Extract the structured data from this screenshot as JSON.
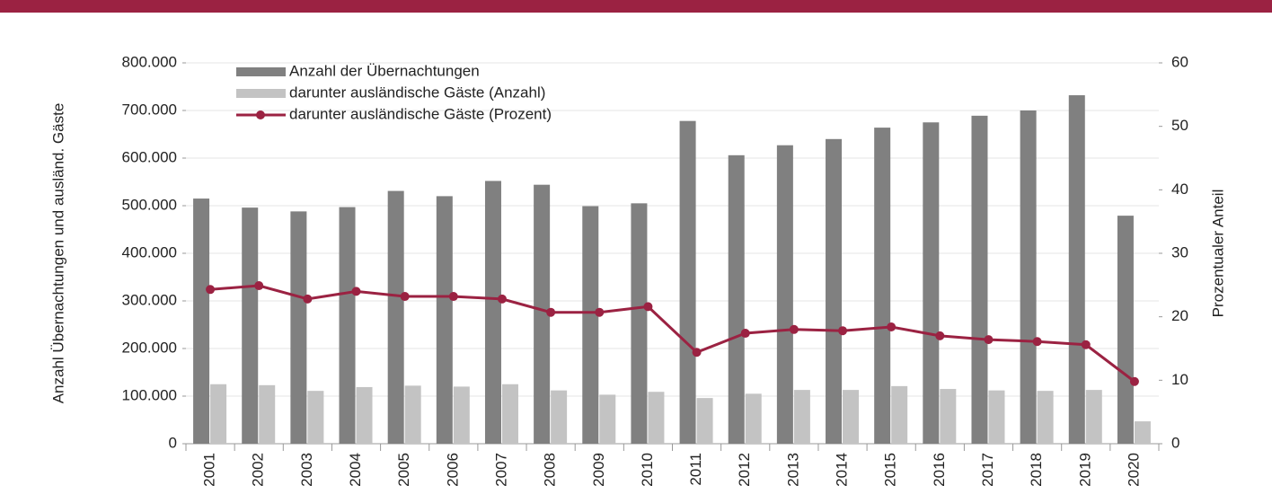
{
  "chart_data": {
    "type": "bar-line",
    "ylabel": "Anzahl Übernachtungen und ausländ. Gäste",
    "y2label": "Prozentualer Anteil",
    "categories": [
      "2001",
      "2002",
      "2003",
      "2004",
      "2005",
      "2006",
      "2007",
      "2008",
      "2009",
      "2010",
      "2011",
      "2012",
      "2013",
      "2014",
      "2015",
      "2016",
      "2017",
      "2018",
      "2019",
      "2020"
    ],
    "series": [
      {
        "name": "Anzahl der Übernachtungen",
        "type": "bar",
        "color": "#808080",
        "values": [
          515000,
          496000,
          488000,
          497000,
          531000,
          520000,
          552000,
          544000,
          499000,
          505000,
          678000,
          606000,
          627000,
          640000,
          664000,
          675000,
          689000,
          700000,
          732000,
          479000
        ]
      },
      {
        "name": "darunter ausländische Gäste (Anzahl)",
        "type": "bar",
        "color": "#c3c3c3",
        "values": [
          125000,
          123000,
          111000,
          119000,
          122000,
          120000,
          125000,
          112000,
          103000,
          109000,
          96000,
          105000,
          113000,
          113000,
          121000,
          115000,
          112000,
          111000,
          113000,
          47000
        ]
      },
      {
        "name": "darunter ausländische Gäste (Prozent)",
        "type": "line",
        "axis": "y2",
        "color": "#9b2242",
        "values": [
          24.3,
          24.9,
          22.8,
          24.0,
          23.2,
          23.2,
          22.8,
          20.7,
          20.7,
          21.6,
          14.4,
          17.4,
          18.0,
          17.8,
          18.4,
          17.0,
          16.4,
          16.1,
          15.6,
          9.8
        ]
      }
    ],
    "ylim": [
      0,
      800000
    ],
    "yticks": [
      0,
      {
        "value": 100000,
        "label": "100.000"
      },
      {
        "value": 200000,
        "label": "200.000"
      },
      {
        "value": 300000,
        "label": "300.000"
      },
      {
        "value": 400000,
        "label": "400.000"
      },
      {
        "value": 500000,
        "label": "500.000"
      },
      {
        "value": 600000,
        "label": "600.000"
      },
      {
        "value": 700000,
        "label": "700.000"
      },
      {
        "value": 800000,
        "label": "800.000"
      }
    ],
    "y2lim": [
      0,
      60
    ],
    "y2ticks": [
      0,
      10,
      20,
      30,
      40,
      50,
      60
    ],
    "grid": true,
    "legend": "top-left"
  }
}
